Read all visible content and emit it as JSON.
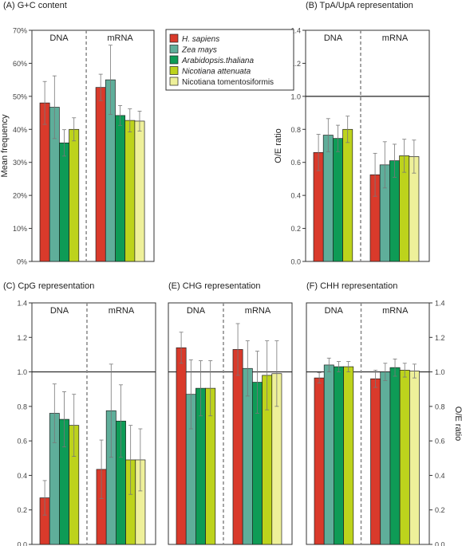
{
  "colors": {
    "H. sapiens": "#d93a2b",
    "Zea mays": "#5fae9a",
    "Arabidopsis.thaliana": "#0e9b56",
    "Nicotiana attenuata": "#bdd31c",
    "Nicotiana tomentosiformis": "#eef09a"
  },
  "legend": {
    "entries": [
      {
        "label": "H. sapiens",
        "italic": true
      },
      {
        "label": "Zea mays",
        "italic": true
      },
      {
        "label": "Arabidopsis.thaliana",
        "italic": true
      },
      {
        "label": "Nicotiana attenuata",
        "italic": true
      },
      {
        "label": "Nicotiana tomentosiformis",
        "italic": false
      }
    ],
    "placement": "top-center"
  },
  "chart_data": [
    {
      "type": "bar",
      "title": "(A) G+C content",
      "ylabel": "Mean frequency",
      "ylabel_side": "left",
      "ylim": [
        0,
        70
      ],
      "ticks": [
        0,
        10,
        20,
        30,
        40,
        50,
        60,
        70
      ],
      "tick_labels": [
        "0%",
        "10%",
        "20%",
        "30%",
        "40%",
        "50%",
        "60%",
        "70%"
      ],
      "reference_line": null,
      "grid": false,
      "groups": [
        {
          "name": "DNA",
          "series": [
            "H. sapiens",
            "Zea mays",
            "Arabidopsis.thaliana",
            "Nicotiana attenuata"
          ],
          "values": [
            48.0,
            46.7,
            35.9,
            40.0
          ],
          "errors": [
            6.5,
            9.5,
            4.0,
            3.5
          ]
        },
        {
          "name": "mRNA",
          "series": [
            "H. sapiens",
            "Zea mays",
            "Arabidopsis.thaliana",
            "Nicotiana attenuata",
            "Nicotiana tomentosiformis"
          ],
          "values": [
            52.7,
            55.0,
            44.2,
            42.7,
            42.5
          ],
          "errors": [
            4.0,
            10.5,
            3.0,
            3.5,
            3.0
          ]
        }
      ]
    },
    {
      "type": "bar",
      "title": "(B) TpA/UpA representation",
      "ylabel": "O/E ratio",
      "ylabel_side": "left",
      "ylim": [
        0,
        1.4
      ],
      "ticks": [
        0,
        0.2,
        0.4,
        0.6,
        0.8,
        1.0,
        1.2,
        1.4
      ],
      "tick_labels": [
        "0.0",
        "0.2",
        "0.4",
        "0.6",
        "0.8",
        "1.0",
        "1.2",
        "1.4"
      ],
      "reference_line": 1.0,
      "grid": false,
      "groups": [
        {
          "name": "DNA",
          "series": [
            "H. sapiens",
            "Zea mays",
            "Arabidopsis.thaliana",
            "Nicotiana attenuata"
          ],
          "values": [
            0.66,
            0.765,
            0.745,
            0.8
          ],
          "errors": [
            0.11,
            0.1,
            0.08,
            0.08
          ]
        },
        {
          "name": "mRNA",
          "series": [
            "H. sapiens",
            "Zea mays",
            "Arabidopsis.thaliana",
            "Nicotiana attenuata",
            "Nicotiana tomentosiformis"
          ],
          "values": [
            0.525,
            0.585,
            0.61,
            0.64,
            0.635
          ],
          "errors": [
            0.13,
            0.14,
            0.1,
            0.1,
            0.1
          ]
        }
      ]
    },
    {
      "type": "bar",
      "title": "(C) CpG representation",
      "ylabel": "",
      "ylabel_side": "left",
      "ylim": [
        0,
        1.4
      ],
      "ticks": [
        0,
        0.2,
        0.4,
        0.6,
        0.8,
        1.0,
        1.2,
        1.4
      ],
      "tick_labels": [
        "0.0",
        "0.2",
        "0.4",
        "0.6",
        "0.8",
        "1.0",
        "1.2",
        "1.4"
      ],
      "reference_line": 1.0,
      "grid": false,
      "groups": [
        {
          "name": "DNA",
          "series": [
            "H. sapiens",
            "Zea mays",
            "Arabidopsis.thaliana",
            "Nicotiana attenuata"
          ],
          "values": [
            0.27,
            0.76,
            0.725,
            0.69
          ],
          "errors": [
            0.1,
            0.17,
            0.16,
            0.18
          ]
        },
        {
          "name": "mRNA",
          "series": [
            "H. sapiens",
            "Zea mays",
            "Arabidopsis.thaliana",
            "Nicotiana attenuata",
            "Nicotiana tomentosiformis"
          ],
          "values": [
            0.435,
            0.775,
            0.715,
            0.49,
            0.49
          ],
          "errors": [
            0.17,
            0.27,
            0.21,
            0.2,
            0.18
          ]
        }
      ]
    },
    {
      "type": "bar",
      "title": "(E) CHG representation",
      "ylabel": "",
      "ylabel_side": "none",
      "ylim": [
        0,
        1.4
      ],
      "ticks": [],
      "tick_labels": [],
      "reference_line": 1.0,
      "grid": false,
      "groups": [
        {
          "name": "DNA",
          "series": [
            "H. sapiens",
            "Zea mays",
            "Arabidopsis.thaliana",
            "Nicotiana attenuata"
          ],
          "values": [
            1.14,
            0.87,
            0.905,
            0.905
          ],
          "errors": [
            0.09,
            0.2,
            0.16,
            0.16
          ]
        },
        {
          "name": "mRNA",
          "series": [
            "H. sapiens",
            "Zea mays",
            "Arabidopsis.thaliana",
            "Nicotiana attenuata",
            "Nicotiana tomentosiformis"
          ],
          "values": [
            1.13,
            1.02,
            0.94,
            0.98,
            0.99
          ],
          "errors": [
            0.15,
            0.16,
            0.18,
            0.2,
            0.19
          ]
        }
      ]
    },
    {
      "type": "bar",
      "title": "(F) CHH representation",
      "ylabel": "O/E ratio",
      "ylabel_side": "right",
      "ylim": [
        0,
        1.4
      ],
      "ticks": [
        0,
        0.2,
        0.4,
        0.6,
        0.8,
        1.0,
        1.2,
        1.4
      ],
      "tick_labels": [
        "0.0",
        "0.2",
        "0.4",
        "0.6",
        "0.8",
        "1.0",
        "1.2",
        "1.4"
      ],
      "reference_line": 1.0,
      "grid": false,
      "groups": [
        {
          "name": "DNA",
          "series": [
            "H. sapiens",
            "Zea mays",
            "Arabidopsis.thaliana",
            "Nicotiana attenuata"
          ],
          "values": [
            0.965,
            1.04,
            1.03,
            1.03
          ],
          "errors": [
            0.03,
            0.04,
            0.03,
            0.03
          ]
        },
        {
          "name": "mRNA",
          "series": [
            "H. sapiens",
            "Zea mays",
            "Arabidopsis.thaliana",
            "Nicotiana attenuata",
            "Nicotiana tomentosiformis"
          ],
          "values": [
            0.96,
            1.0,
            1.025,
            1.01,
            1.005
          ],
          "errors": [
            0.05,
            0.05,
            0.05,
            0.04,
            0.04
          ]
        }
      ]
    }
  ]
}
